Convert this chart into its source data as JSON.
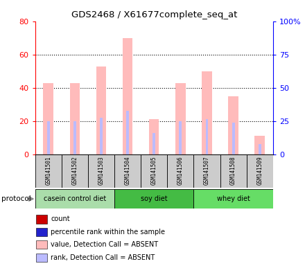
{
  "title": "GDS2468 / X61677complete_seq_at",
  "samples": [
    "GSM141501",
    "GSM141502",
    "GSM141503",
    "GSM141504",
    "GSM141505",
    "GSM141506",
    "GSM141507",
    "GSM141508",
    "GSM141509"
  ],
  "absent_value_bars": [
    43,
    43,
    53,
    70,
    21,
    43,
    50,
    35,
    11
  ],
  "absent_rank_bars": [
    20,
    20,
    22,
    26,
    13,
    20,
    21,
    19,
    6
  ],
  "ylim_left": [
    0,
    80
  ],
  "ylim_right": [
    0,
    100
  ],
  "yticks_left": [
    0,
    20,
    40,
    60,
    80
  ],
  "ytick_labels_left": [
    "0",
    "20",
    "40",
    "60",
    "80"
  ],
  "yticks_right": [
    0,
    25,
    50,
    75,
    100
  ],
  "ytick_labels_right": [
    "0",
    "25",
    "50",
    "75",
    "100%"
  ],
  "absent_bar_color": "#ffbbbb",
  "absent_rank_color": "#bbbbff",
  "count_color": "#cc0000",
  "percentile_color": "#2222cc",
  "sample_bg": "#cccccc",
  "protocols": [
    {
      "label": "casein control diet",
      "xstart": -0.5,
      "xend": 2.5,
      "color": "#aaddaa"
    },
    {
      "label": "soy diet",
      "xstart": 2.5,
      "xend": 5.5,
      "color": "#44bb44"
    },
    {
      "label": "whey diet",
      "xstart": 5.5,
      "xend": 8.5,
      "color": "#66dd66"
    }
  ],
  "legend_items": [
    {
      "color": "#cc0000",
      "label": "count"
    },
    {
      "color": "#2222cc",
      "label": "percentile rank within the sample"
    },
    {
      "color": "#ffbbbb",
      "label": "value, Detection Call = ABSENT"
    },
    {
      "color": "#bbbbff",
      "label": "rank, Detection Call = ABSENT"
    }
  ]
}
